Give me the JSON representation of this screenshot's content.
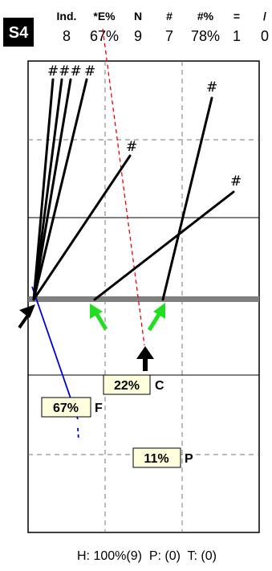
{
  "session_badge": "S4",
  "stats": [
    {
      "header": "Ind.",
      "value": "8"
    },
    {
      "header": "*E%",
      "value": "67%"
    },
    {
      "header": "N",
      "value": "9"
    },
    {
      "header": "#",
      "value": "7"
    },
    {
      "header": "#%",
      "value": "78%"
    },
    {
      "header": "=",
      "value": "1"
    },
    {
      "header": "/",
      "value": "0"
    }
  ],
  "hash_marks": {
    "cluster": "###",
    "single_a": "#",
    "single_b": "#",
    "single_c": "#",
    "single_d": "#"
  },
  "zones": {
    "c": {
      "percent": "22%",
      "letter": "C"
    },
    "f": {
      "percent": "67%",
      "letter": "F"
    },
    "p": {
      "percent": "11%",
      "letter": "P"
    }
  },
  "footer": "H: 100%(9)  P: (0)  T: (0)",
  "colors": {
    "badge_bg": "#000000",
    "green_arrow": "#22dd22",
    "blue_line": "#0000dd",
    "red_dashed": "#ee0000",
    "gray_bar": "#808080",
    "label_bg": "#ffffdd"
  }
}
